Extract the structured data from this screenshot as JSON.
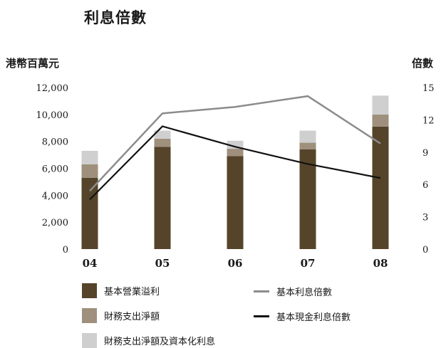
{
  "chart_data": {
    "type": "bar",
    "title": "利息倍數",
    "ylabel": "港幣百萬元",
    "y2label": "倍數",
    "categories": [
      "04",
      "05",
      "06",
      "07",
      "08"
    ],
    "ylim": [
      0,
      12000
    ],
    "yticks": [
      "0",
      "2,000",
      "4,000",
      "6,000",
      "8,000",
      "10,000",
      "12,000"
    ],
    "ytick_values": [
      0,
      2000,
      4000,
      6000,
      8000,
      10000,
      12000
    ],
    "y2lim": [
      0,
      15
    ],
    "y2ticks": [
      "0",
      "3",
      "6",
      "9",
      "12",
      "15"
    ],
    "y2tick_values": [
      0,
      3,
      6,
      9,
      12,
      15
    ],
    "bar_series": [
      {
        "name": "基本營業溢利",
        "color": "#55442a",
        "values": [
          5300,
          7600,
          6900,
          7400,
          9100
        ]
      },
      {
        "name": "財務支出淨額",
        "color": "#9e907c",
        "values": [
          1000,
          600,
          550,
          500,
          900
        ]
      },
      {
        "name": "財務支出淨額及資本化利息",
        "color": "#cfcfcf",
        "values": [
          1000,
          600,
          600,
          900,
          1400
        ]
      }
    ],
    "line_series": [
      {
        "name": "基本利息倍數",
        "color": "#8c8c8c",
        "values": [
          5.4,
          12.6,
          13.2,
          14.2,
          9.8
        ]
      },
      {
        "name": "基本現金利息倍數",
        "color": "#111111",
        "values": [
          4.6,
          11.4,
          9.5,
          7.9,
          6.6
        ]
      }
    ],
    "grid": false
  }
}
